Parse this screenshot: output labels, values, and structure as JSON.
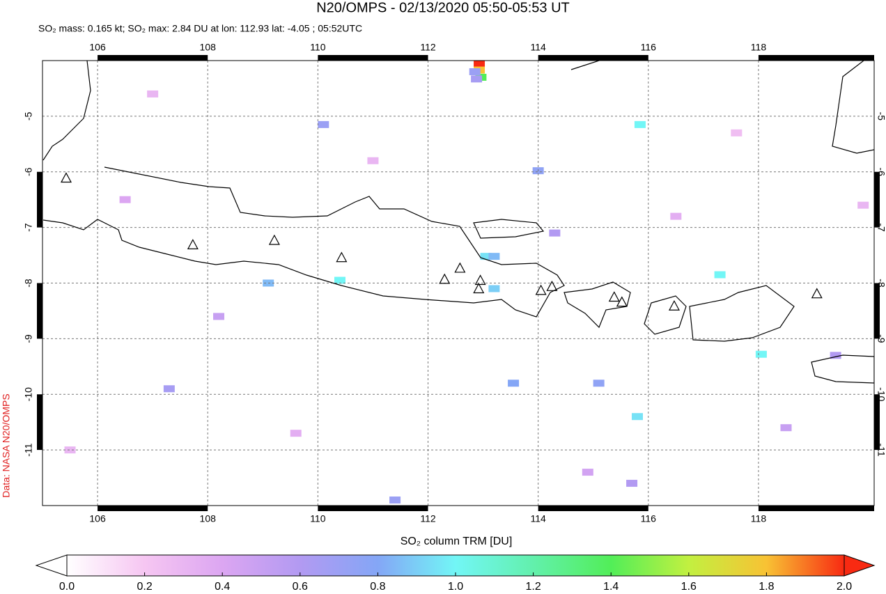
{
  "chart_data": {
    "type": "map",
    "title": "N20/OMPS - 02/13/2020 05:50-05:53 UT",
    "subtitle": "SO₂ mass: 0.165 kt; SO₂ max: 2.84 DU at lon: 112.93 lat: -4.05 ; 05:52UTC",
    "credit": "Data: NASA N20/OMPS",
    "xlim": [
      105,
      120.1
    ],
    "ylim": [
      -12,
      -4
    ],
    "xticks": [
      106,
      108,
      110,
      112,
      114,
      116,
      118
    ],
    "yticks": [
      -5,
      -6,
      -7,
      -8,
      -9,
      -10,
      -11
    ],
    "grid": true,
    "pixels": {
      "lon": [
        112.93,
        112.93,
        112.96,
        112.85,
        112.88,
        115.85,
        113.05,
        113.2,
        110.4,
        109.1,
        117.3,
        118.05,
        115.8,
        113.2,
        110.1,
        114.0,
        107.3,
        113.55,
        115.1,
        111.4,
        119.4,
        108.2,
        106.5,
        111.0,
        116.5,
        118.5,
        105.5,
        114.9,
        117.6,
        107.0,
        119.9,
        109.6,
        114.3,
        115.7
      ],
      "lat": [
        -4.05,
        -4.17,
        -4.3,
        -4.2,
        -4.33,
        -5.15,
        -7.52,
        -7.52,
        -7.95,
        -8.0,
        -7.85,
        -9.28,
        -10.4,
        -8.1,
        -5.15,
        -5.98,
        -9.9,
        -9.8,
        -9.8,
        -11.9,
        -9.3,
        -8.6,
        -6.5,
        -5.8,
        -6.8,
        -10.6,
        -11.0,
        -11.4,
        -5.3,
        -4.6,
        -6.6,
        -10.7,
        -7.1,
        -11.6
      ],
      "values": [
        2.84,
        1.8,
        1.4,
        0.7,
        0.65,
        1.0,
        0.95,
        0.85,
        1.0,
        0.85,
        1.0,
        1.0,
        0.95,
        0.9,
        0.7,
        0.75,
        0.65,
        0.8,
        0.75,
        0.7,
        0.6,
        0.5,
        0.4,
        0.3,
        0.35,
        0.5,
        0.3,
        0.45,
        0.25,
        0.3,
        0.3,
        0.35,
        0.6,
        0.6
      ]
    },
    "volcanoes": {
      "lon": [
        105.43,
        107.73,
        109.21,
        110.43,
        112.3,
        112.58,
        112.95,
        112.92,
        114.05,
        114.25,
        115.38,
        115.52,
        116.47,
        119.06
      ],
      "lat": [
        -6.11,
        -7.31,
        -7.23,
        -7.54,
        -7.93,
        -7.73,
        -7.95,
        -8.1,
        -8.13,
        -8.06,
        -8.25,
        -8.34,
        -8.41,
        -8.19
      ]
    },
    "colorbar": {
      "label": "SO₂ column TRM [DU]",
      "lim": [
        0,
        2
      ],
      "ticks": [
        {
          "value": 0,
          "label": "0.0"
        },
        {
          "value": 0.2,
          "label": "0.2"
        },
        {
          "value": 0.4,
          "label": "0.4"
        },
        {
          "value": 0.6,
          "label": "0.6"
        },
        {
          "value": 0.8,
          "label": "0.8"
        },
        {
          "value": 1,
          "label": "1.0"
        },
        {
          "value": 1.2,
          "label": "1.2"
        },
        {
          "value": 1.4,
          "label": "1.4"
        },
        {
          "value": 1.6,
          "label": "1.6"
        },
        {
          "value": 1.8,
          "label": "1.8"
        },
        {
          "value": 2,
          "label": "2.0"
        }
      ],
      "colors": [
        "#ffffff",
        "#f6c6f2",
        "#dca6f2",
        "#b29af2",
        "#84a6f6",
        "#72f6f6",
        "#62f0ac",
        "#52ee58",
        "#c2f040",
        "#f8c234",
        "#f82a12"
      ]
    }
  }
}
